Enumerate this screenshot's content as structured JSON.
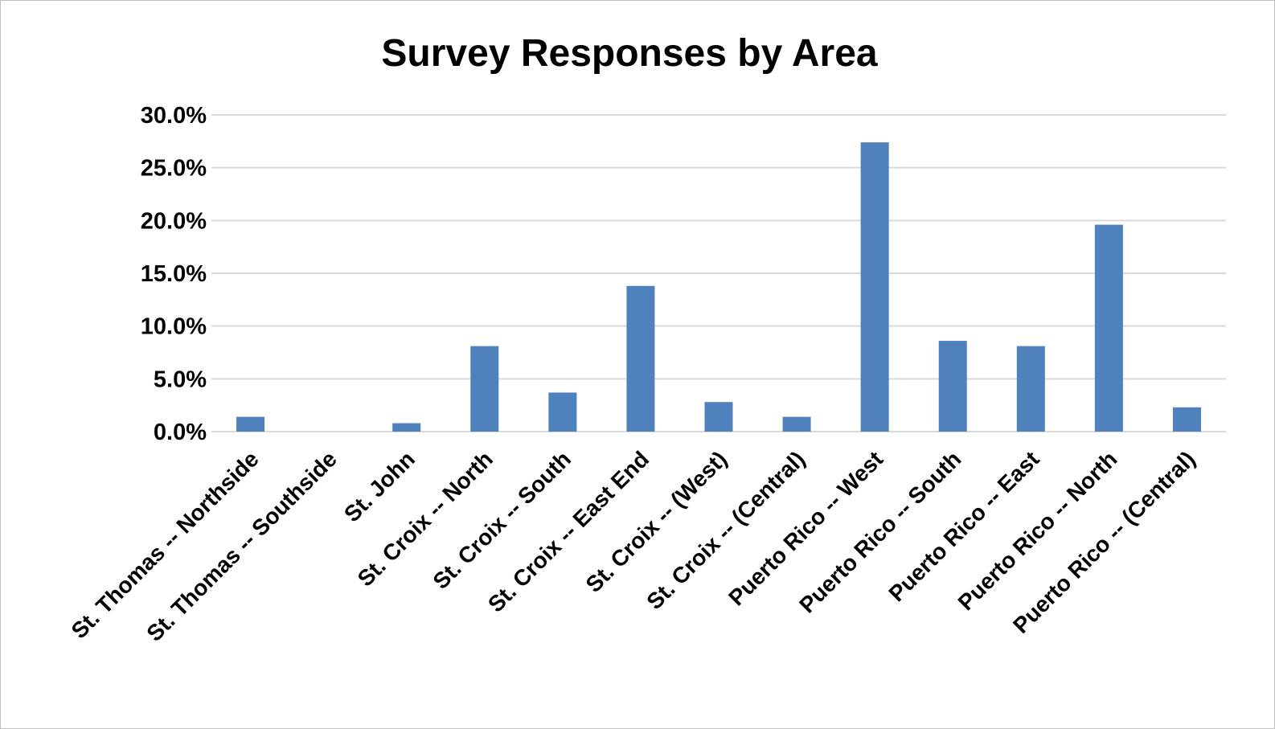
{
  "chart_data": {
    "type": "bar",
    "title": "Survey Responses by Area",
    "xlabel": "",
    "ylabel": "",
    "categories": [
      "St. Thomas -- Northside",
      "St. Thomas -- Southside",
      "St. John",
      "St. Croix -- North",
      "St. Croix -- South",
      "St. Croix -- East End",
      "St. Croix -- (West)",
      "St. Croix -- (Central)",
      "Puerto Rico -- West",
      "Puerto Rico -- South",
      "Puerto Rico -- East",
      "Puerto Rico -- North",
      "Puerto Rico -- (Central)"
    ],
    "values": [
      1.4,
      0.0,
      0.8,
      8.1,
      3.7,
      13.8,
      2.8,
      1.4,
      27.4,
      8.6,
      8.1,
      19.6,
      2.3
    ],
    "value_unit": "%",
    "ylim": [
      0,
      30
    ],
    "yticks": [
      "0.0%",
      "5.0%",
      "10.0%",
      "15.0%",
      "20.0%",
      "25.0%",
      "30.0%"
    ],
    "ytick_values": [
      0,
      5,
      10,
      15,
      20,
      25,
      30
    ],
    "grid": true,
    "legend": "none",
    "bar_color": "#4f81bd",
    "grid_color": "#d9d9d9"
  }
}
